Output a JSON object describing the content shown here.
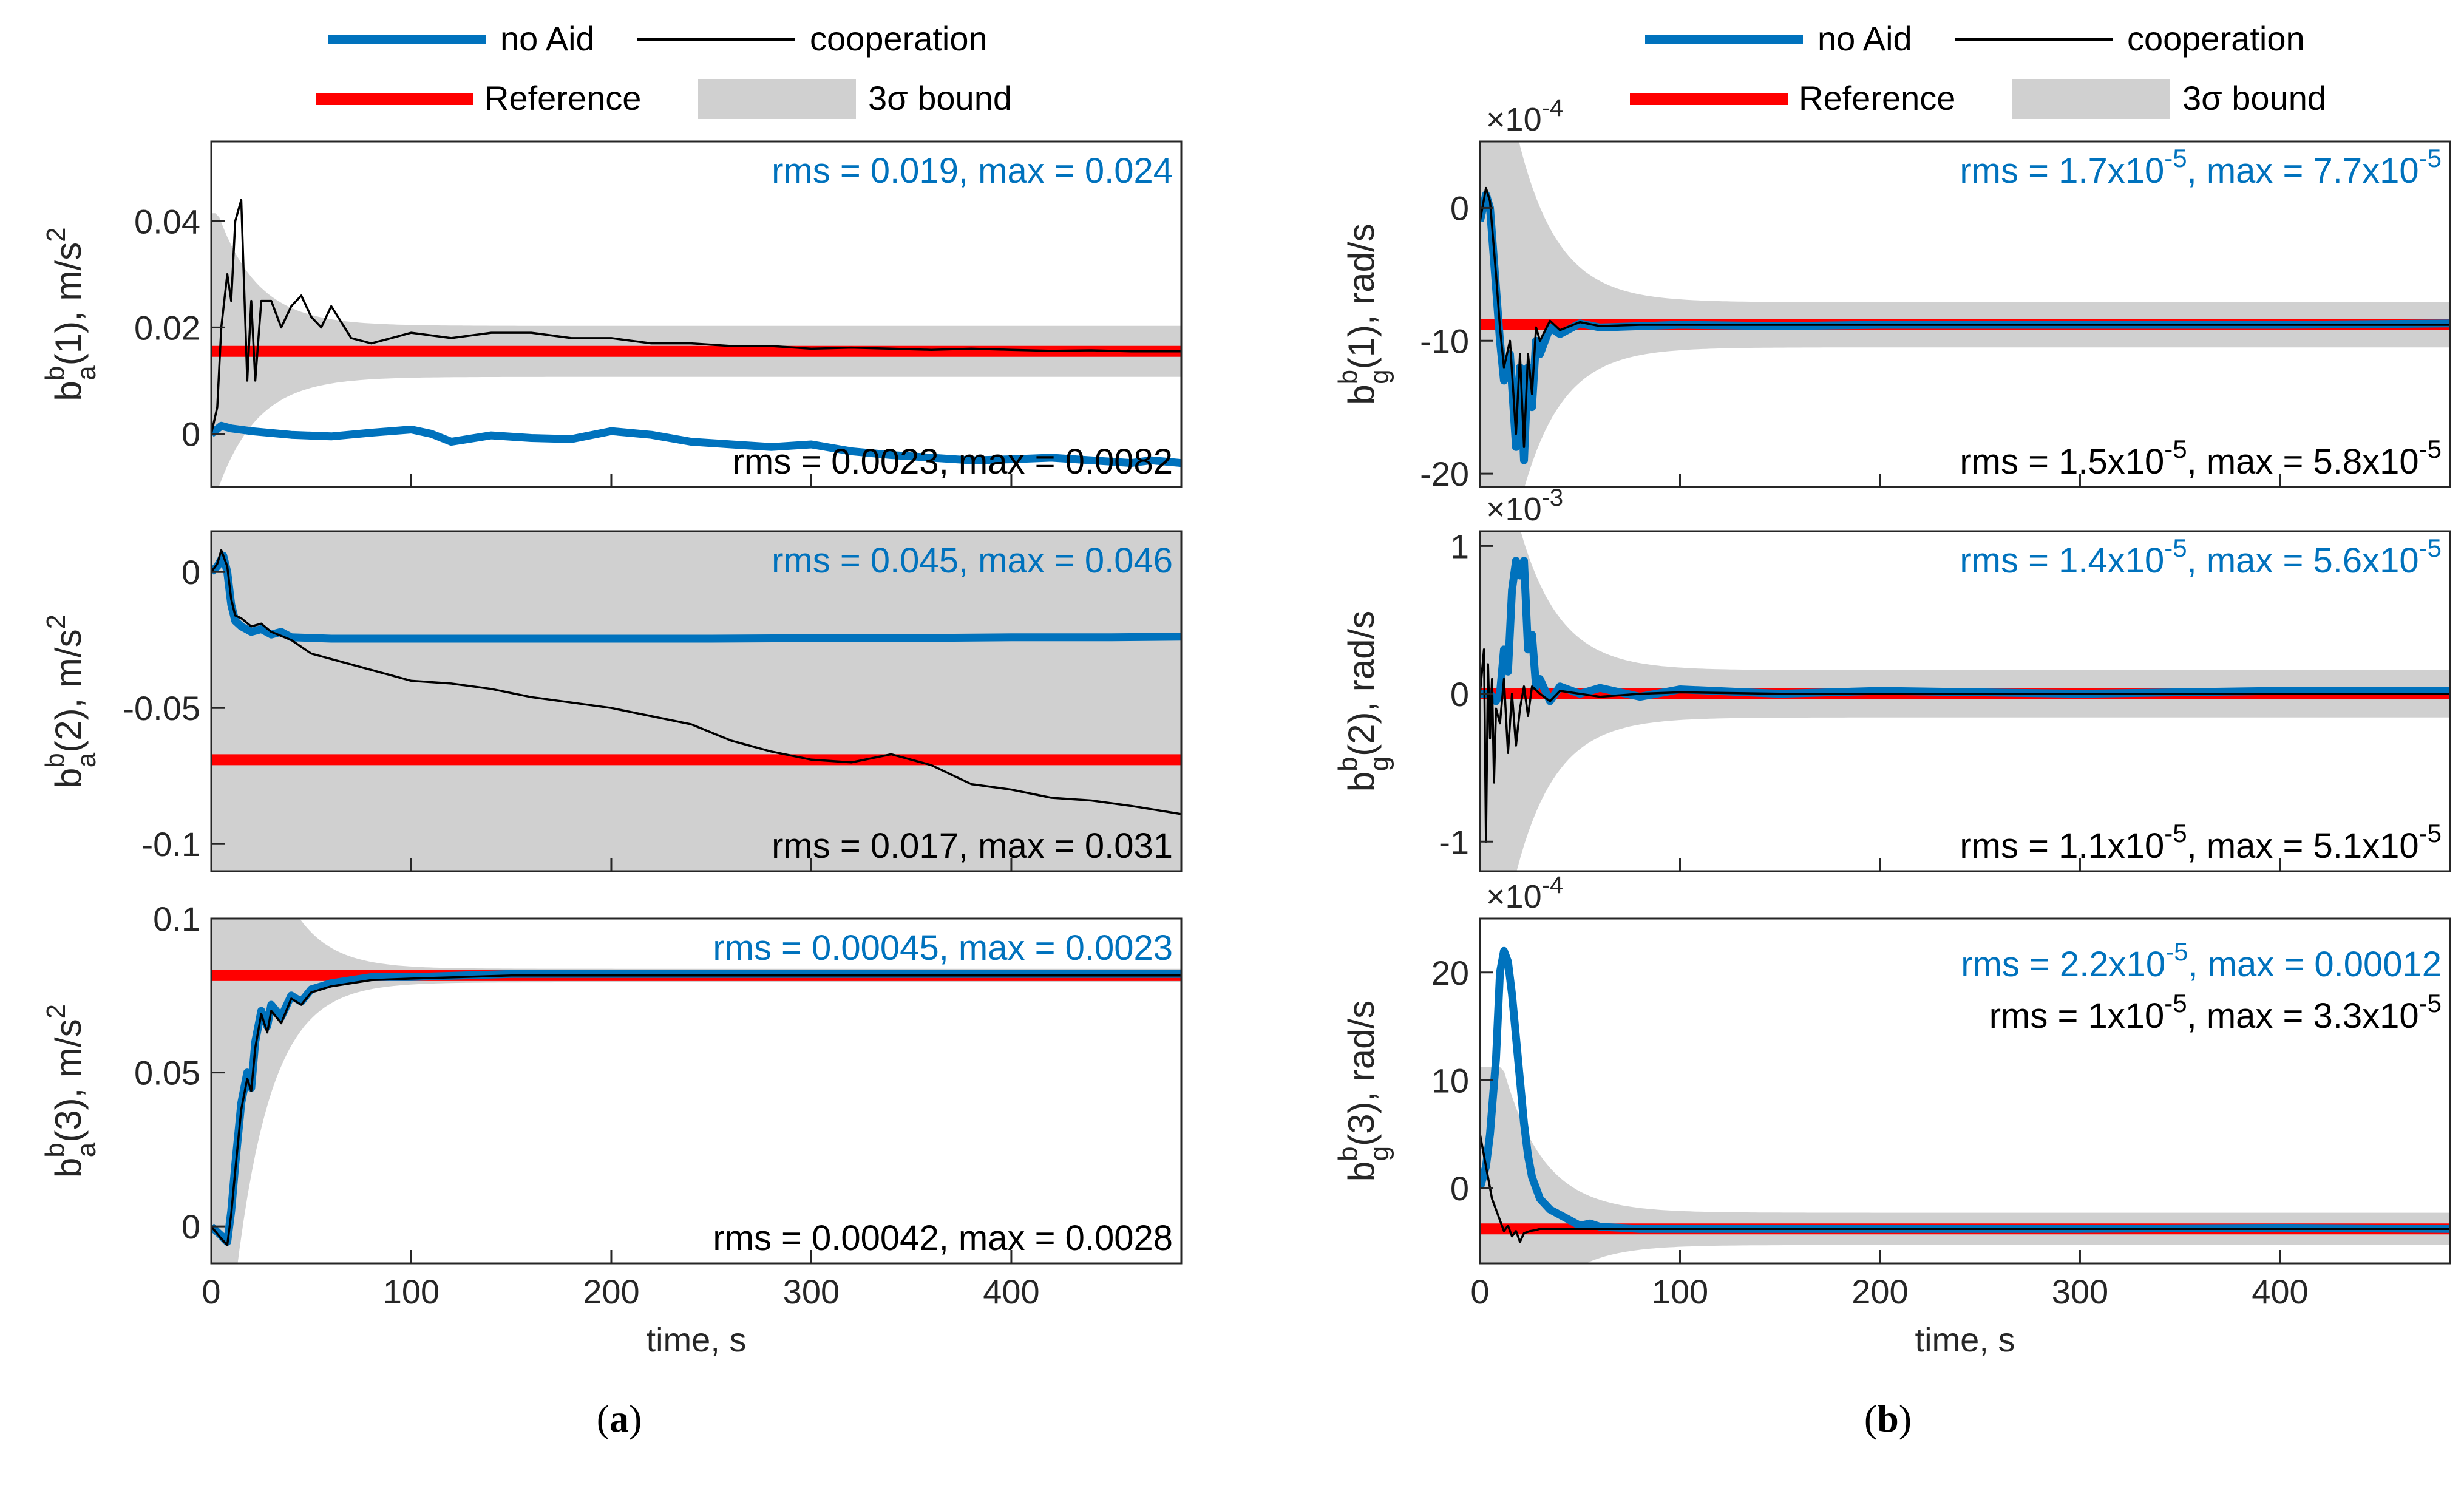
{
  "legend": {
    "no_aid": "no Aid",
    "cooperation": "cooperation",
    "reference": "Reference",
    "bound": "3σ bound"
  },
  "colors": {
    "no_aid": "#0072bd",
    "cooperation": "#000000",
    "reference": "#ff0000",
    "bound": "#d0d0d0"
  },
  "captions": {
    "a": "a",
    "b": "b"
  },
  "chart_data": [
    {
      "id": "a1",
      "type": "line",
      "column": "a",
      "row": 0,
      "ylabel": {
        "base": "b",
        "sup": "b",
        "sub": "a",
        "rest": "(1), m/s",
        "sup2": "2"
      },
      "xlim": [
        0,
        485
      ],
      "ylim": [
        -0.01,
        0.055
      ],
      "yticks": [
        0,
        0.02,
        0.04
      ],
      "yticklabels": [
        "0",
        "0.02",
        "0.04"
      ],
      "xticks": [
        0,
        100,
        200,
        300,
        400
      ],
      "xticklabels": [],
      "exponent": null,
      "reference": 0.0155,
      "bound": {
        "center": 0.0155,
        "steady": 0.0048,
        "scale": 0.025,
        "tau": 20,
        "cap": 0.026
      },
      "no_aid": {
        "x": [
          0,
          5,
          10,
          20,
          40,
          60,
          80,
          100,
          110,
          120,
          140,
          160,
          180,
          200,
          220,
          240,
          260,
          280,
          300,
          320,
          340,
          360,
          380,
          400,
          420,
          440,
          460,
          470,
          485
        ],
        "y": [
          0,
          0.0015,
          0.001,
          0.0005,
          -0.0002,
          -0.0005,
          0.0002,
          0.0008,
          0.0,
          -0.0015,
          -0.0003,
          -0.0008,
          -0.001,
          0.0005,
          -0.0002,
          -0.0015,
          -0.002,
          -0.0025,
          -0.002,
          -0.0033,
          -0.004,
          -0.0045,
          -0.005,
          -0.0048,
          -0.0045,
          -0.005,
          -0.0055,
          -0.005,
          -0.0055
        ]
      },
      "cooperation": {
        "x": [
          0,
          3,
          5,
          8,
          10,
          12,
          15,
          18,
          20,
          22,
          25,
          30,
          35,
          40,
          45,
          50,
          55,
          60,
          70,
          80,
          90,
          100,
          120,
          140,
          160,
          180,
          200,
          220,
          240,
          260,
          280,
          300,
          320,
          340,
          360,
          380,
          400,
          420,
          440,
          460,
          485
        ],
        "y": [
          0,
          0.005,
          0.02,
          0.03,
          0.025,
          0.04,
          0.044,
          0.01,
          0.025,
          0.01,
          0.025,
          0.025,
          0.02,
          0.024,
          0.026,
          0.022,
          0.02,
          0.024,
          0.018,
          0.017,
          0.018,
          0.019,
          0.018,
          0.019,
          0.019,
          0.018,
          0.018,
          0.017,
          0.017,
          0.0165,
          0.0165,
          0.016,
          0.0162,
          0.016,
          0.0158,
          0.016,
          0.0158,
          0.0156,
          0.0157,
          0.0155,
          0.0155
        ]
      },
      "ann_top": "rms = 0.019, max = 0.024",
      "ann_bottom": "rms = 0.0023, max = 0.0082"
    },
    {
      "id": "a2",
      "type": "line",
      "column": "a",
      "row": 1,
      "ylabel": {
        "base": "b",
        "sup": "b",
        "sub": "a",
        "rest": "(2), m/s",
        "sup2": "2"
      },
      "xlim": [
        0,
        485
      ],
      "ylim": [
        -0.11,
        0.015
      ],
      "yticks": [
        0,
        -0.05,
        -0.1
      ],
      "yticklabels": [
        "0",
        "-0.05",
        "-0.1"
      ],
      "xticks": [
        0,
        100,
        200,
        300,
        400
      ],
      "xticklabels": [],
      "exponent": null,
      "reference": -0.069,
      "bound": {
        "center": -0.069,
        "steady": 0.2,
        "scale": 0,
        "tau": 20,
        "cap": 0.2
      },
      "no_aid": {
        "x": [
          0,
          3,
          6,
          8,
          10,
          12,
          15,
          20,
          25,
          30,
          35,
          40,
          60,
          80,
          100,
          150,
          200,
          250,
          300,
          350,
          400,
          450,
          485
        ],
        "y": [
          0,
          0.002,
          0.006,
          0.0,
          -0.012,
          -0.018,
          -0.02,
          -0.022,
          -0.021,
          -0.023,
          -0.022,
          -0.024,
          -0.0245,
          -0.0245,
          -0.0245,
          -0.0245,
          -0.0245,
          -0.0245,
          -0.0243,
          -0.0243,
          -0.024,
          -0.024,
          -0.0238
        ]
      },
      "cooperation": {
        "x": [
          0,
          3,
          5,
          8,
          10,
          12,
          15,
          20,
          25,
          30,
          40,
          50,
          60,
          80,
          100,
          120,
          140,
          160,
          180,
          200,
          220,
          240,
          260,
          280,
          300,
          320,
          340,
          360,
          380,
          400,
          420,
          440,
          460,
          485
        ],
        "y": [
          0,
          0.003,
          0.008,
          0.002,
          -0.01,
          -0.016,
          -0.017,
          -0.02,
          -0.019,
          -0.022,
          -0.025,
          -0.03,
          -0.032,
          -0.036,
          -0.04,
          -0.041,
          -0.043,
          -0.046,
          -0.048,
          -0.05,
          -0.053,
          -0.056,
          -0.062,
          -0.066,
          -0.069,
          -0.07,
          -0.067,
          -0.071,
          -0.078,
          -0.08,
          -0.083,
          -0.084,
          -0.086,
          -0.089
        ]
      },
      "ann_top": "rms = 0.045, max = 0.046",
      "ann_bottom": "rms = 0.017, max = 0.031"
    },
    {
      "id": "a3",
      "type": "line",
      "column": "a",
      "row": 2,
      "ylabel": {
        "base": "b",
        "sup": "b",
        "sub": "a",
        "rest": "(3), m/s",
        "sup2": "2"
      },
      "xlim": [
        0,
        485
      ],
      "ylim": [
        -0.012,
        0.1
      ],
      "yticks": [
        0,
        0.05,
        0.1
      ],
      "yticklabels": [
        "0",
        "0.05",
        "0.1"
      ],
      "xticks": [
        0,
        100,
        200,
        300,
        400
      ],
      "xticklabels": [
        "0",
        "100",
        "200",
        "300",
        "400"
      ],
      "xlabel": "time, s",
      "exponent": null,
      "reference": 0.0815,
      "bound": {
        "center": 0.0815,
        "steady": 0.0022,
        "scale": 0.19,
        "tau": 18,
        "cap": 0.1
      },
      "no_aid": {
        "x": [
          0,
          5,
          8,
          10,
          12,
          15,
          18,
          20,
          22,
          25,
          28,
          30,
          35,
          40,
          45,
          50,
          55,
          60,
          70,
          80,
          100,
          150,
          200,
          300,
          400,
          485
        ],
        "y": [
          0,
          -0.003,
          -0.005,
          0.005,
          0.02,
          0.04,
          0.05,
          0.045,
          0.06,
          0.07,
          0.065,
          0.072,
          0.068,
          0.075,
          0.073,
          0.077,
          0.078,
          0.079,
          0.08,
          0.081,
          0.081,
          0.082,
          0.082,
          0.082,
          0.082,
          0.082
        ]
      },
      "cooperation": {
        "x": [
          0,
          5,
          8,
          10,
          12,
          15,
          18,
          20,
          22,
          25,
          28,
          30,
          35,
          40,
          45,
          50,
          55,
          60,
          70,
          80,
          100,
          150,
          200,
          300,
          400,
          485
        ],
        "y": [
          0,
          -0.004,
          -0.006,
          0.004,
          0.018,
          0.038,
          0.048,
          0.044,
          0.058,
          0.069,
          0.063,
          0.07,
          0.066,
          0.074,
          0.072,
          0.076,
          0.077,
          0.078,
          0.079,
          0.08,
          0.0805,
          0.0815,
          0.0815,
          0.0815,
          0.0815,
          0.0815
        ]
      },
      "ann_top": "rms = 0.00045, max = 0.0023",
      "ann_bottom": "rms = 0.00042, max = 0.0028"
    },
    {
      "id": "b1",
      "type": "line",
      "column": "b",
      "row": 0,
      "ylabel": {
        "base": "b",
        "sup": "b",
        "sub": "g",
        "rest": "(1), rad/s",
        "sup2": ""
      },
      "xlim": [
        0,
        485
      ],
      "ylim": [
        -21,
        5
      ],
      "yticks": [
        0,
        -10,
        -20
      ],
      "yticklabels": [
        "0",
        "-10",
        "-20"
      ],
      "xticks": [
        0,
        100,
        200,
        300,
        400
      ],
      "xticklabels": [],
      "exponent": {
        "base": "×10",
        "exp": "-4"
      },
      "reference": -8.8,
      "bound": {
        "center": -8.8,
        "steady": 1.7,
        "scale": 32,
        "tau": 20,
        "cap": 30
      },
      "no_aid": {
        "x": [
          0,
          3,
          5,
          8,
          10,
          12,
          15,
          18,
          20,
          22,
          24,
          26,
          28,
          30,
          35,
          40,
          50,
          60,
          80,
          100,
          150,
          200,
          300,
          400,
          485
        ],
        "y": [
          -1,
          1,
          0,
          -6,
          -10,
          -13,
          -11,
          -18,
          -12,
          -19,
          -12,
          -15,
          -10,
          -11,
          -9,
          -9.5,
          -8.7,
          -9,
          -8.9,
          -8.8,
          -8.9,
          -8.8,
          -8.8,
          -8.8,
          -8.7
        ]
      },
      "cooperation": {
        "x": [
          0,
          3,
          5,
          8,
          10,
          12,
          15,
          18,
          20,
          22,
          24,
          26,
          28,
          30,
          35,
          40,
          50,
          60,
          80,
          100,
          150,
          200,
          300,
          400,
          485
        ],
        "y": [
          -1,
          1.5,
          0.5,
          -5,
          -9,
          -12,
          -10,
          -17,
          -11,
          -18,
          -11,
          -14,
          -9,
          -10,
          -8.5,
          -9.2,
          -8.6,
          -8.9,
          -8.8,
          -8.8,
          -8.8,
          -8.8,
          -8.8,
          -8.8,
          -8.8
        ]
      },
      "ann_top": {
        "a": "rms = 1.7x10",
        "ae": "-5",
        "b": ", max = 7.7x10",
        "be": "-5",
        "c": ""
      },
      "ann_bottom": {
        "a": "rms = 1.5x10",
        "ae": "-5",
        "b": ", max = 5.8x10",
        "be": "-5",
        "c": ""
      }
    },
    {
      "id": "b2",
      "type": "line",
      "column": "b",
      "row": 1,
      "ylabel": {
        "base": "b",
        "sup": "b",
        "sub": "g",
        "rest": "(2), rad/s",
        "sup2": ""
      },
      "xlim": [
        0,
        485
      ],
      "ylim": [
        -1.2,
        1.1
      ],
      "yticks": [
        1,
        0,
        -1
      ],
      "yticklabels": [
        "1",
        "0",
        "-1"
      ],
      "xticks": [
        0,
        100,
        200,
        300,
        400
      ],
      "xticklabels": [],
      "exponent": {
        "base": "×10",
        "exp": "-3"
      },
      "reference": 0,
      "bound": {
        "center": 0,
        "steady": 0.16,
        "scale": 2.6,
        "tau": 20,
        "cap": 2
      },
      "no_aid": {
        "x": [
          0,
          5,
          8,
          10,
          12,
          14,
          16,
          18,
          20,
          22,
          24,
          26,
          28,
          30,
          35,
          40,
          50,
          60,
          80,
          100,
          150,
          200,
          300,
          400,
          485
        ],
        "y": [
          0,
          0,
          -0.05,
          0,
          0.3,
          0.15,
          0.7,
          0.9,
          0.8,
          0.9,
          0.3,
          0.4,
          0.05,
          0.1,
          -0.05,
          0.05,
          0,
          0.04,
          -0.02,
          0.03,
          0,
          0.02,
          0,
          0.02,
          0.02
        ]
      },
      "cooperation": {
        "x": [
          0,
          2,
          3,
          4,
          5,
          6,
          7,
          8,
          10,
          12,
          14,
          16,
          18,
          20,
          22,
          24,
          26,
          30,
          35,
          40,
          50,
          60,
          80,
          100,
          150,
          200,
          300,
          400,
          485
        ],
        "y": [
          0,
          0.3,
          -1,
          0.2,
          -0.3,
          0.1,
          -0.6,
          -0.1,
          -0.2,
          0.1,
          -0.4,
          0,
          -0.35,
          -0.1,
          0.05,
          -0.15,
          0.05,
          0,
          -0.05,
          0.02,
          0,
          -0.02,
          0,
          0.01,
          0,
          0,
          0,
          0,
          0
        ]
      },
      "ann_top": {
        "a": "rms = 1.4x10",
        "ae": "-5",
        "b": ", max = 5.6x10",
        "be": "-5",
        "c": ""
      },
      "ann_bottom": {
        "a": "rms = 1.1x10",
        "ae": "-5",
        "b": ", max = 5.1x10",
        "be": "-5",
        "c": ""
      }
    },
    {
      "id": "b3",
      "type": "line",
      "column": "b",
      "row": 2,
      "ylabel": {
        "base": "b",
        "sup": "b",
        "sub": "g",
        "rest": "(3), rad/s",
        "sup2": ""
      },
      "xlim": [
        0,
        485
      ],
      "ylim": [
        -7,
        25
      ],
      "yticks": [
        20,
        10,
        0
      ],
      "yticklabels": [
        "20",
        "10",
        "0"
      ],
      "xticks": [
        0,
        100,
        200,
        300,
        400
      ],
      "xticklabels": [
        "0",
        "100",
        "200",
        "300",
        "400"
      ],
      "xlabel": "time, s",
      "exponent": {
        "base": "×10",
        "exp": "-4"
      },
      "reference": -3.8,
      "bound": {
        "center": -3.8,
        "steady": 1.5,
        "scale": 24,
        "tau": 20,
        "cap": 15
      },
      "no_aid": {
        "x": [
          0,
          3,
          5,
          8,
          10,
          12,
          14,
          16,
          18,
          20,
          22,
          24,
          26,
          28,
          30,
          35,
          40,
          45,
          50,
          55,
          60,
          70,
          80,
          100,
          150,
          200,
          300,
          400,
          485
        ],
        "y": [
          0,
          2,
          5,
          12,
          20,
          22,
          21,
          18,
          14,
          10,
          6,
          3,
          1,
          0,
          -1,
          -2,
          -2.5,
          -3,
          -3.5,
          -3.3,
          -3.6,
          -3.7,
          -3.8,
          -3.8,
          -3.8,
          -3.8,
          -3.8,
          -3.7,
          -3.8
        ]
      },
      "cooperation": {
        "x": [
          0,
          2,
          4,
          6,
          8,
          10,
          12,
          14,
          16,
          18,
          20,
          22,
          25,
          28,
          30,
          35,
          40,
          50,
          60,
          80,
          100,
          150,
          200,
          300,
          400,
          485
        ],
        "y": [
          5,
          3,
          1,
          -1,
          -2,
          -3,
          -4,
          -3.5,
          -4.5,
          -4,
          -5,
          -4.2,
          -4,
          -3.9,
          -3.8,
          -3.8,
          -3.8,
          -3.8,
          -3.8,
          -3.8,
          -3.8,
          -3.8,
          -3.8,
          -3.8,
          -3.8,
          -3.8
        ]
      },
      "ann_top": {
        "a": "rms = 2.2x10",
        "ae": "-5",
        "b": ", max = 0.00012",
        "be": "",
        "c": ""
      },
      "ann_bottom": {
        "a": "rms = 1x10",
        "ae": "-5",
        "b": ", max = 3.3x10",
        "be": "-5",
        "c": ""
      }
    }
  ]
}
